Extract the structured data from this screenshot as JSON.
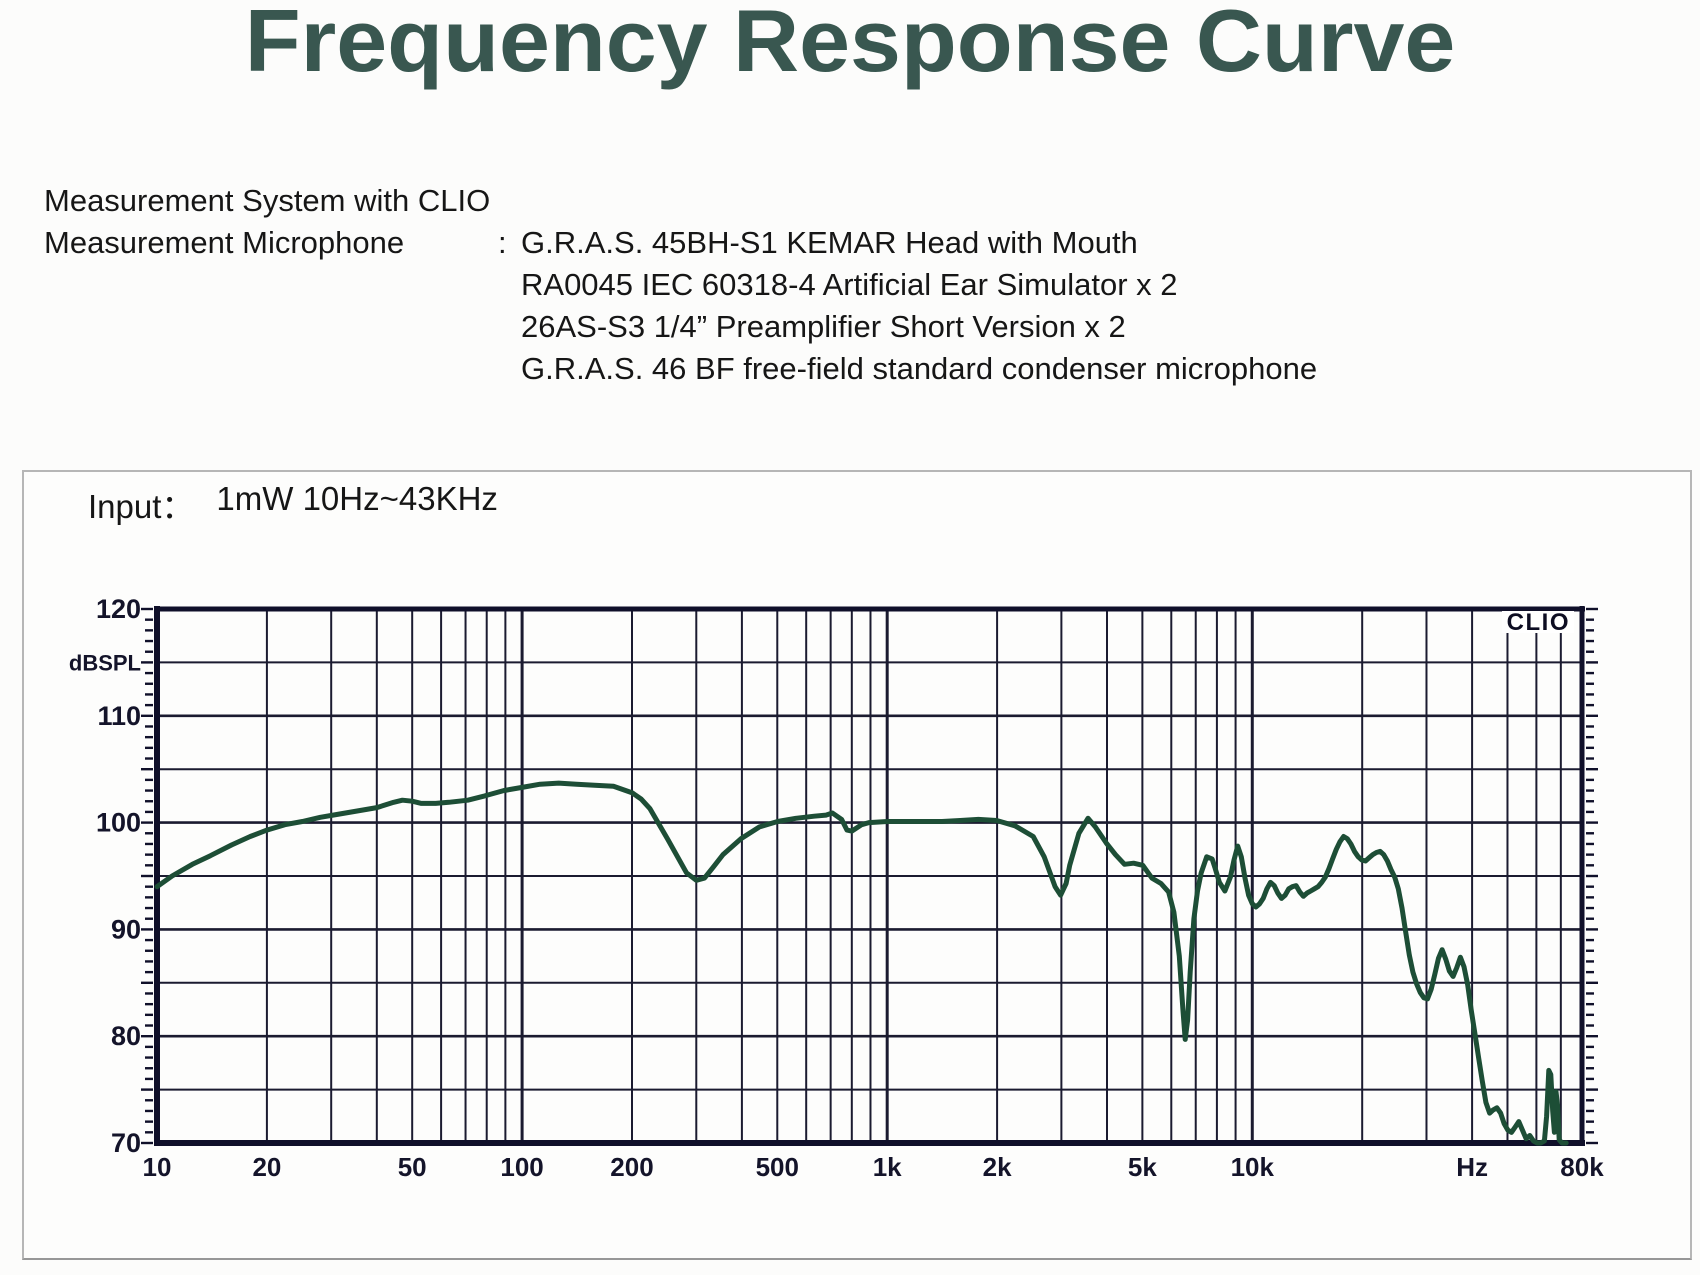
{
  "title": "Frequency Response Curve",
  "info": {
    "system_line": "Measurement System with CLIO",
    "microphone_label": "Measurement Microphone",
    "colon": ":",
    "microphone_items": [
      "G.R.A.S. 45BH-S1 KEMAR Head with Mouth",
      "RA0045 IEC 60318-4 Artificial Ear Simulator x 2",
      "26AS-S3 1/4” Preamplifier Short Version x 2",
      "G.R.A.S. 46 BF free-field standard condenser microphone"
    ]
  },
  "panel": {
    "input_label": "Input：",
    "input_value": "1mW 10Hz~43KHz",
    "clio_logo": "CLIO"
  },
  "colors": {
    "title": "#395750",
    "grid": "#1b1b30",
    "border": "#10102a",
    "curve": "#1d4e36",
    "label": "#14142a"
  },
  "chart_data": {
    "type": "line",
    "title": "",
    "ylabel": "dBSPL",
    "x_scale": "log",
    "xlim": [
      10,
      80000
    ],
    "ylim": [
      70,
      120
    ],
    "y_grid_step": 5,
    "grid": true,
    "legend": "none",
    "y_major_ticks": [
      120,
      110,
      100,
      90,
      80,
      70
    ],
    "x_tick_labels": [
      {
        "f": 10,
        "label": "10"
      },
      {
        "f": 20,
        "label": "20"
      },
      {
        "f": 50,
        "label": "50"
      },
      {
        "f": 100,
        "label": "100"
      },
      {
        "f": 200,
        "label": "200"
      },
      {
        "f": 500,
        "label": "500"
      },
      {
        "f": 1000,
        "label": "1k"
      },
      {
        "f": 2000,
        "label": "2k"
      },
      {
        "f": 5000,
        "label": "5k"
      },
      {
        "f": 10000,
        "label": "10k"
      },
      {
        "f": 40000,
        "label": "Hz"
      },
      {
        "f": 80000,
        "label": "80k"
      }
    ],
    "series": [
      {
        "name": "SPL",
        "color": "#1d4e36",
        "points": [
          [
            10,
            94.0
          ],
          [
            11,
            95.0
          ],
          [
            12.5,
            96.1
          ],
          [
            14,
            96.9
          ],
          [
            16,
            97.9
          ],
          [
            18,
            98.7
          ],
          [
            20,
            99.3
          ],
          [
            22.4,
            99.8
          ],
          [
            25,
            100.1
          ],
          [
            28,
            100.5
          ],
          [
            31.5,
            100.8
          ],
          [
            35.5,
            101.1
          ],
          [
            40,
            101.4
          ],
          [
            44.5,
            101.9
          ],
          [
            47,
            102.1
          ],
          [
            50,
            102.0
          ],
          [
            53,
            101.8
          ],
          [
            58,
            101.8
          ],
          [
            63,
            101.9
          ],
          [
            71,
            102.1
          ],
          [
            79,
            102.5
          ],
          [
            89,
            103.0
          ],
          [
            100,
            103.3
          ],
          [
            112,
            103.6
          ],
          [
            126,
            103.7
          ],
          [
            141,
            103.6
          ],
          [
            158,
            103.5
          ],
          [
            178,
            103.4
          ],
          [
            200,
            102.8
          ],
          [
            212,
            102.2
          ],
          [
            224,
            101.3
          ],
          [
            251,
            98.4
          ],
          [
            282,
            95.3
          ],
          [
            300,
            94.6
          ],
          [
            316,
            94.8
          ],
          [
            335,
            95.9
          ],
          [
            355,
            97.0
          ],
          [
            398,
            98.5
          ],
          [
            447,
            99.6
          ],
          [
            501,
            100.1
          ],
          [
            562,
            100.4
          ],
          [
            631,
            100.6
          ],
          [
            680,
            100.7
          ],
          [
            708,
            100.9
          ],
          [
            750,
            100.3
          ],
          [
            776,
            99.3
          ],
          [
            800,
            99.2
          ],
          [
            851,
            99.8
          ],
          [
            891,
            100.0
          ],
          [
            1000,
            100.1
          ],
          [
            1122,
            100.1
          ],
          [
            1259,
            100.1
          ],
          [
            1413,
            100.1
          ],
          [
            1585,
            100.2
          ],
          [
            1778,
            100.3
          ],
          [
            1995,
            100.2
          ],
          [
            2239,
            99.7
          ],
          [
            2512,
            98.7
          ],
          [
            2692,
            96.8
          ],
          [
            2884,
            94.0
          ],
          [
            2985,
            93.2
          ],
          [
            3090,
            94.3
          ],
          [
            3162,
            96.0
          ],
          [
            3350,
            99.0
          ],
          [
            3548,
            100.4
          ],
          [
            3715,
            99.6
          ],
          [
            3981,
            98.1
          ],
          [
            4217,
            97.0
          ],
          [
            4467,
            96.1
          ],
          [
            4732,
            96.2
          ],
          [
            5012,
            96.0
          ],
          [
            5309,
            94.8
          ],
          [
            5623,
            94.3
          ],
          [
            5900,
            93.5
          ],
          [
            6100,
            91.6
          ],
          [
            6310,
            87.5
          ],
          [
            6457,
            82.5
          ],
          [
            6550,
            79.7
          ],
          [
            6650,
            81.5
          ],
          [
            6761,
            86.0
          ],
          [
            6918,
            91.0
          ],
          [
            7079,
            93.6
          ],
          [
            7244,
            95.3
          ],
          [
            7499,
            96.8
          ],
          [
            7762,
            96.6
          ],
          [
            7900,
            95.8
          ],
          [
            8128,
            94.4
          ],
          [
            8414,
            93.6
          ],
          [
            8710,
            94.9
          ],
          [
            8913,
            96.5
          ],
          [
            9120,
            97.8
          ],
          [
            9333,
            96.8
          ],
          [
            9550,
            94.8
          ],
          [
            9772,
            93.2
          ],
          [
            10000,
            92.4
          ],
          [
            10233,
            92.1
          ],
          [
            10471,
            92.4
          ],
          [
            10715,
            92.9
          ],
          [
            10965,
            93.8
          ],
          [
            11220,
            94.4
          ],
          [
            11482,
            94.1
          ],
          [
            11749,
            93.4
          ],
          [
            12023,
            92.9
          ],
          [
            12303,
            93.2
          ],
          [
            12589,
            93.8
          ],
          [
            12882,
            94.0
          ],
          [
            13183,
            94.1
          ],
          [
            13490,
            93.5
          ],
          [
            13804,
            93.1
          ],
          [
            14125,
            93.4
          ],
          [
            14454,
            93.6
          ],
          [
            14791,
            93.8
          ],
          [
            15136,
            94.0
          ],
          [
            15488,
            94.4
          ],
          [
            15849,
            94.9
          ],
          [
            16218,
            95.7
          ],
          [
            16596,
            96.6
          ],
          [
            16982,
            97.5
          ],
          [
            17378,
            98.2
          ],
          [
            17783,
            98.7
          ],
          [
            18197,
            98.5
          ],
          [
            18621,
            98.0
          ],
          [
            19055,
            97.3
          ],
          [
            19498,
            96.8
          ],
          [
            19953,
            96.5
          ],
          [
            20417,
            96.4
          ],
          [
            20893,
            96.7
          ],
          [
            21380,
            97.0
          ],
          [
            21878,
            97.2
          ],
          [
            22387,
            97.3
          ],
          [
            22909,
            97.0
          ],
          [
            23442,
            96.4
          ],
          [
            23988,
            95.6
          ],
          [
            24547,
            94.9
          ],
          [
            25119,
            93.8
          ],
          [
            25704,
            92.0
          ],
          [
            26303,
            89.8
          ],
          [
            26915,
            87.6
          ],
          [
            27542,
            86.0
          ],
          [
            28184,
            84.9
          ],
          [
            28840,
            84.1
          ],
          [
            29512,
            83.6
          ],
          [
            30200,
            83.5
          ],
          [
            30903,
            84.4
          ],
          [
            31623,
            85.8
          ],
          [
            32359,
            87.3
          ],
          [
            33113,
            88.1
          ],
          [
            33884,
            87.2
          ],
          [
            34674,
            86.1
          ],
          [
            35481,
            85.6
          ],
          [
            36308,
            86.4
          ],
          [
            37154,
            87.4
          ],
          [
            38019,
            86.5
          ],
          [
            38905,
            84.8
          ],
          [
            39811,
            82.4
          ],
          [
            40738,
            80.2
          ],
          [
            41687,
            78.0
          ],
          [
            42658,
            75.8
          ],
          [
            43652,
            73.8
          ],
          [
            44668,
            72.8
          ],
          [
            45709,
            73.1
          ],
          [
            46774,
            73.3
          ],
          [
            47863,
            72.8
          ],
          [
            48978,
            71.8
          ],
          [
            50119,
            71.2
          ],
          [
            51286,
            71.0
          ],
          [
            52481,
            71.5
          ],
          [
            53703,
            72.0
          ],
          [
            54954,
            71.2
          ],
          [
            56234,
            70.4
          ],
          [
            57544,
            70.7
          ],
          [
            58884,
            70.2
          ],
          [
            60256,
            70.0
          ],
          [
            61660,
            70.0
          ],
          [
            63096,
            70.2
          ],
          [
            64000,
            72.5
          ],
          [
            64900,
            76.8
          ],
          [
            65700,
            76.4
          ],
          [
            66500,
            73.0
          ],
          [
            67200,
            71.0
          ],
          [
            67900,
            74.8
          ],
          [
            68600,
            73.5
          ],
          [
            69300,
            70.3
          ],
          [
            70500,
            70.0
          ],
          [
            72400,
            70.0
          ]
        ]
      }
    ]
  }
}
